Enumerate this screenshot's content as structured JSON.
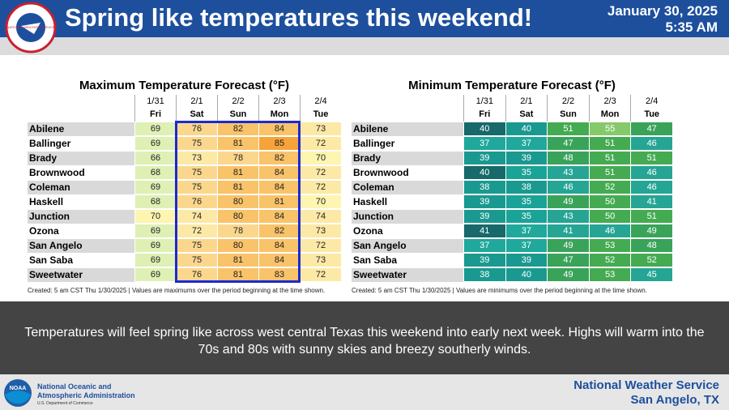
{
  "header": {
    "logo_text": "NATIONAL WEATHER SERVICE",
    "title": "Spring like temperatures this weekend!",
    "date": "January 30, 2025",
    "time": "5:35 AM"
  },
  "tables": [
    {
      "title": "Maximum Temperature Forecast (°F)",
      "dates": [
        "1/31",
        "2/1",
        "2/2",
        "2/3",
        "2/4"
      ],
      "days": [
        "Fri",
        "Sat",
        "Sun",
        "Mon",
        "Tue"
      ],
      "rows": [
        [
          "Abilene",
          69,
          76,
          82,
          84,
          73
        ],
        [
          "Ballinger",
          69,
          75,
          81,
          85,
          72
        ],
        [
          "Brady",
          66,
          73,
          78,
          82,
          70
        ],
        [
          "Brownwood",
          68,
          75,
          81,
          84,
          72
        ],
        [
          "Coleman",
          69,
          75,
          81,
          84,
          72
        ],
        [
          "Haskell",
          68,
          76,
          80,
          81,
          70
        ],
        [
          "Junction",
          70,
          74,
          80,
          84,
          74
        ],
        [
          "Ozona",
          69,
          72,
          78,
          82,
          73
        ],
        [
          "San Angelo",
          69,
          75,
          80,
          84,
          72
        ],
        [
          "San Saba",
          69,
          75,
          81,
          84,
          73
        ],
        [
          "Sweetwater",
          69,
          76,
          81,
          83,
          72
        ]
      ],
      "footnote": "Created: 5 am CST Thu 1/30/2025  |  Values are maximums over the period beginning at the time shown."
    },
    {
      "title": "Minimum Temperature Forecast (°F)",
      "dates": [
        "1/31",
        "2/1",
        "2/2",
        "2/3",
        "2/4"
      ],
      "days": [
        "Fri",
        "Sat",
        "Sun",
        "Mon",
        "Tue"
      ],
      "rows": [
        [
          "Abilene",
          40,
          40,
          51,
          55,
          47
        ],
        [
          "Ballinger",
          37,
          37,
          47,
          51,
          46
        ],
        [
          "Brady",
          39,
          39,
          48,
          51,
          51
        ],
        [
          "Brownwood",
          40,
          35,
          43,
          51,
          46
        ],
        [
          "Coleman",
          38,
          38,
          46,
          52,
          46
        ],
        [
          "Haskell",
          39,
          35,
          49,
          50,
          41
        ],
        [
          "Junction",
          39,
          35,
          43,
          50,
          51
        ],
        [
          "Ozona",
          41,
          37,
          41,
          46,
          49
        ],
        [
          "San Angelo",
          37,
          37,
          49,
          53,
          48
        ],
        [
          "San Saba",
          39,
          39,
          47,
          52,
          52
        ],
        [
          "Sweetwater",
          38,
          40,
          49,
          53,
          45
        ]
      ],
      "footnote": "Created: 5 am CST Thu 1/30/2025  |  Values are minimums over the period beginning at the time shown."
    }
  ],
  "body": "Temperatures will feel spring like across west central Texas this weekend into early next week.  Highs will warm into the 70s and 80s with sunny skies and breezy southerly winds.",
  "footer": {
    "noaa_logo": "NOAA",
    "agency": "National Oceanic and Atmospheric Administration",
    "department": "U.S. Department of Commerce",
    "office": "National Weather Service",
    "location": "San Angelo, TX"
  }
}
